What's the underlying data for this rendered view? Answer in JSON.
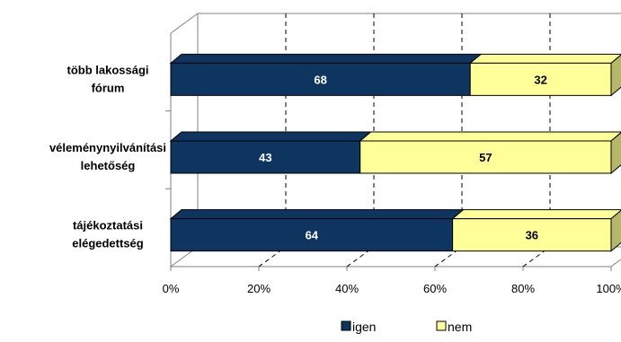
{
  "chart_data": {
    "type": "bar",
    "orientation": "horizontal",
    "stacked": true,
    "percent_stacked": true,
    "three_d": true,
    "categories": [
      [
        "több lakossági",
        "fórum"
      ],
      [
        "véleménynyilvánítási",
        "lehetőség"
      ],
      [
        "tájékoztatási",
        "elégedettség"
      ]
    ],
    "series": [
      {
        "name": "igen",
        "values": [
          68,
          43,
          64
        ],
        "color": "#0e3460",
        "label_color": "#ffffff",
        "side_color": "#0b2847"
      },
      {
        "name": "nem",
        "values": [
          32,
          57,
          36
        ],
        "color": "#ffff99",
        "label_color": "#000000",
        "side_color": "#b7b76b"
      }
    ],
    "x_ticks": [
      "0%",
      "20%",
      "40%",
      "60%",
      "80%",
      "100%"
    ],
    "xlim": [
      0,
      100
    ],
    "grid": true,
    "legend_position": "bottom"
  }
}
